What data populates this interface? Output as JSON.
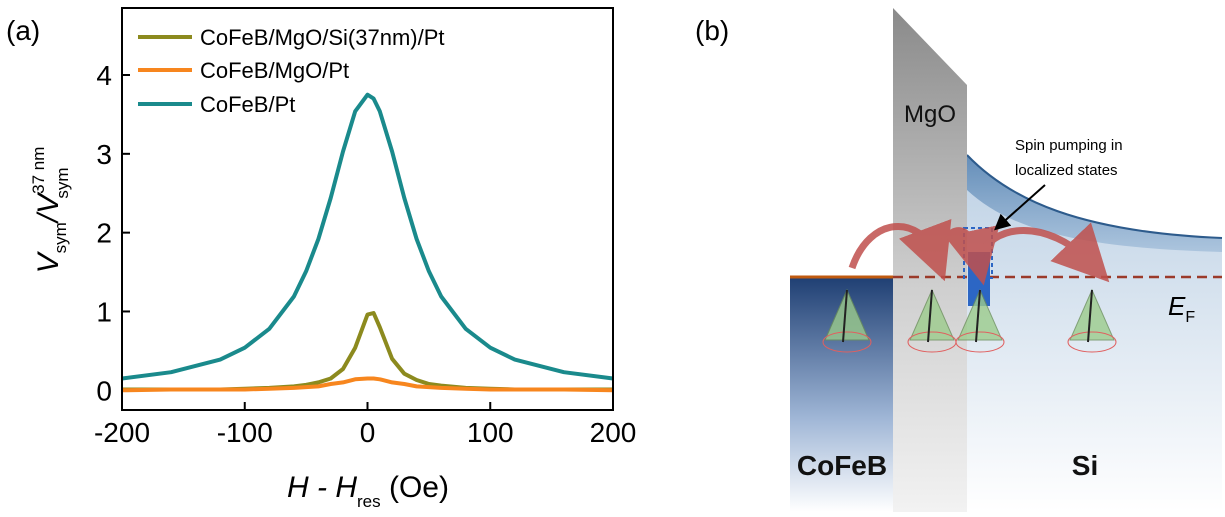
{
  "panel_a": {
    "label": "(a)"
  },
  "chart_data": {
    "type": "line",
    "xlabel": {
      "main": "H - H",
      "sub": "res",
      "unit": " (Oe)"
    },
    "ylabel": {
      "main": "V",
      "sub": "sym",
      "slash": "/V",
      "sup": "37 nm",
      "sub2": "sym"
    },
    "x": [
      -200,
      -160,
      -120,
      -100,
      -80,
      -60,
      -50,
      -40,
      -30,
      -20,
      -10,
      0,
      5,
      10,
      20,
      30,
      40,
      50,
      60,
      80,
      100,
      120,
      160,
      200
    ],
    "series": [
      {
        "name": "CoFeB/MgO/Si(37nm)/Pt",
        "color": "#8c8a1e",
        "values": [
          0.01,
          0.01,
          0.01,
          0.02,
          0.03,
          0.05,
          0.07,
          0.1,
          0.15,
          0.27,
          0.54,
          0.96,
          0.98,
          0.8,
          0.4,
          0.21,
          0.13,
          0.08,
          0.06,
          0.03,
          0.02,
          0.01,
          0.01,
          0.01
        ]
      },
      {
        "name": "CoFeB/MgO/Pt",
        "color": "#f7861e",
        "values": [
          0.0,
          0.01,
          0.01,
          0.01,
          0.02,
          0.03,
          0.04,
          0.05,
          0.08,
          0.1,
          0.14,
          0.15,
          0.15,
          0.14,
          0.1,
          0.08,
          0.05,
          0.04,
          0.03,
          0.02,
          0.01,
          0.01,
          0.01,
          0.0
        ]
      },
      {
        "name": "CoFeB/Pt",
        "color": "#1a8a8c",
        "values": [
          0.15,
          0.23,
          0.39,
          0.54,
          0.78,
          1.19,
          1.51,
          1.92,
          2.44,
          3.03,
          3.54,
          3.75,
          3.7,
          3.54,
          3.03,
          2.44,
          1.92,
          1.51,
          1.19,
          0.78,
          0.54,
          0.39,
          0.23,
          0.15
        ]
      }
    ],
    "xlim": [
      -200,
      200
    ],
    "xticks": [
      -200,
      -100,
      0,
      100,
      200
    ],
    "ylim": [
      -0.25,
      4.85
    ],
    "yticks": [
      0,
      1,
      2,
      3,
      4
    ],
    "legend": "upper left"
  },
  "panel_b": {
    "label": "(b)",
    "barrier": "MgO",
    "annotation": [
      "Spin pumping in",
      "localized states"
    ],
    "fermi": {
      "main": "E",
      "sub": "F"
    },
    "left": "CoFeB",
    "right": "Si"
  }
}
